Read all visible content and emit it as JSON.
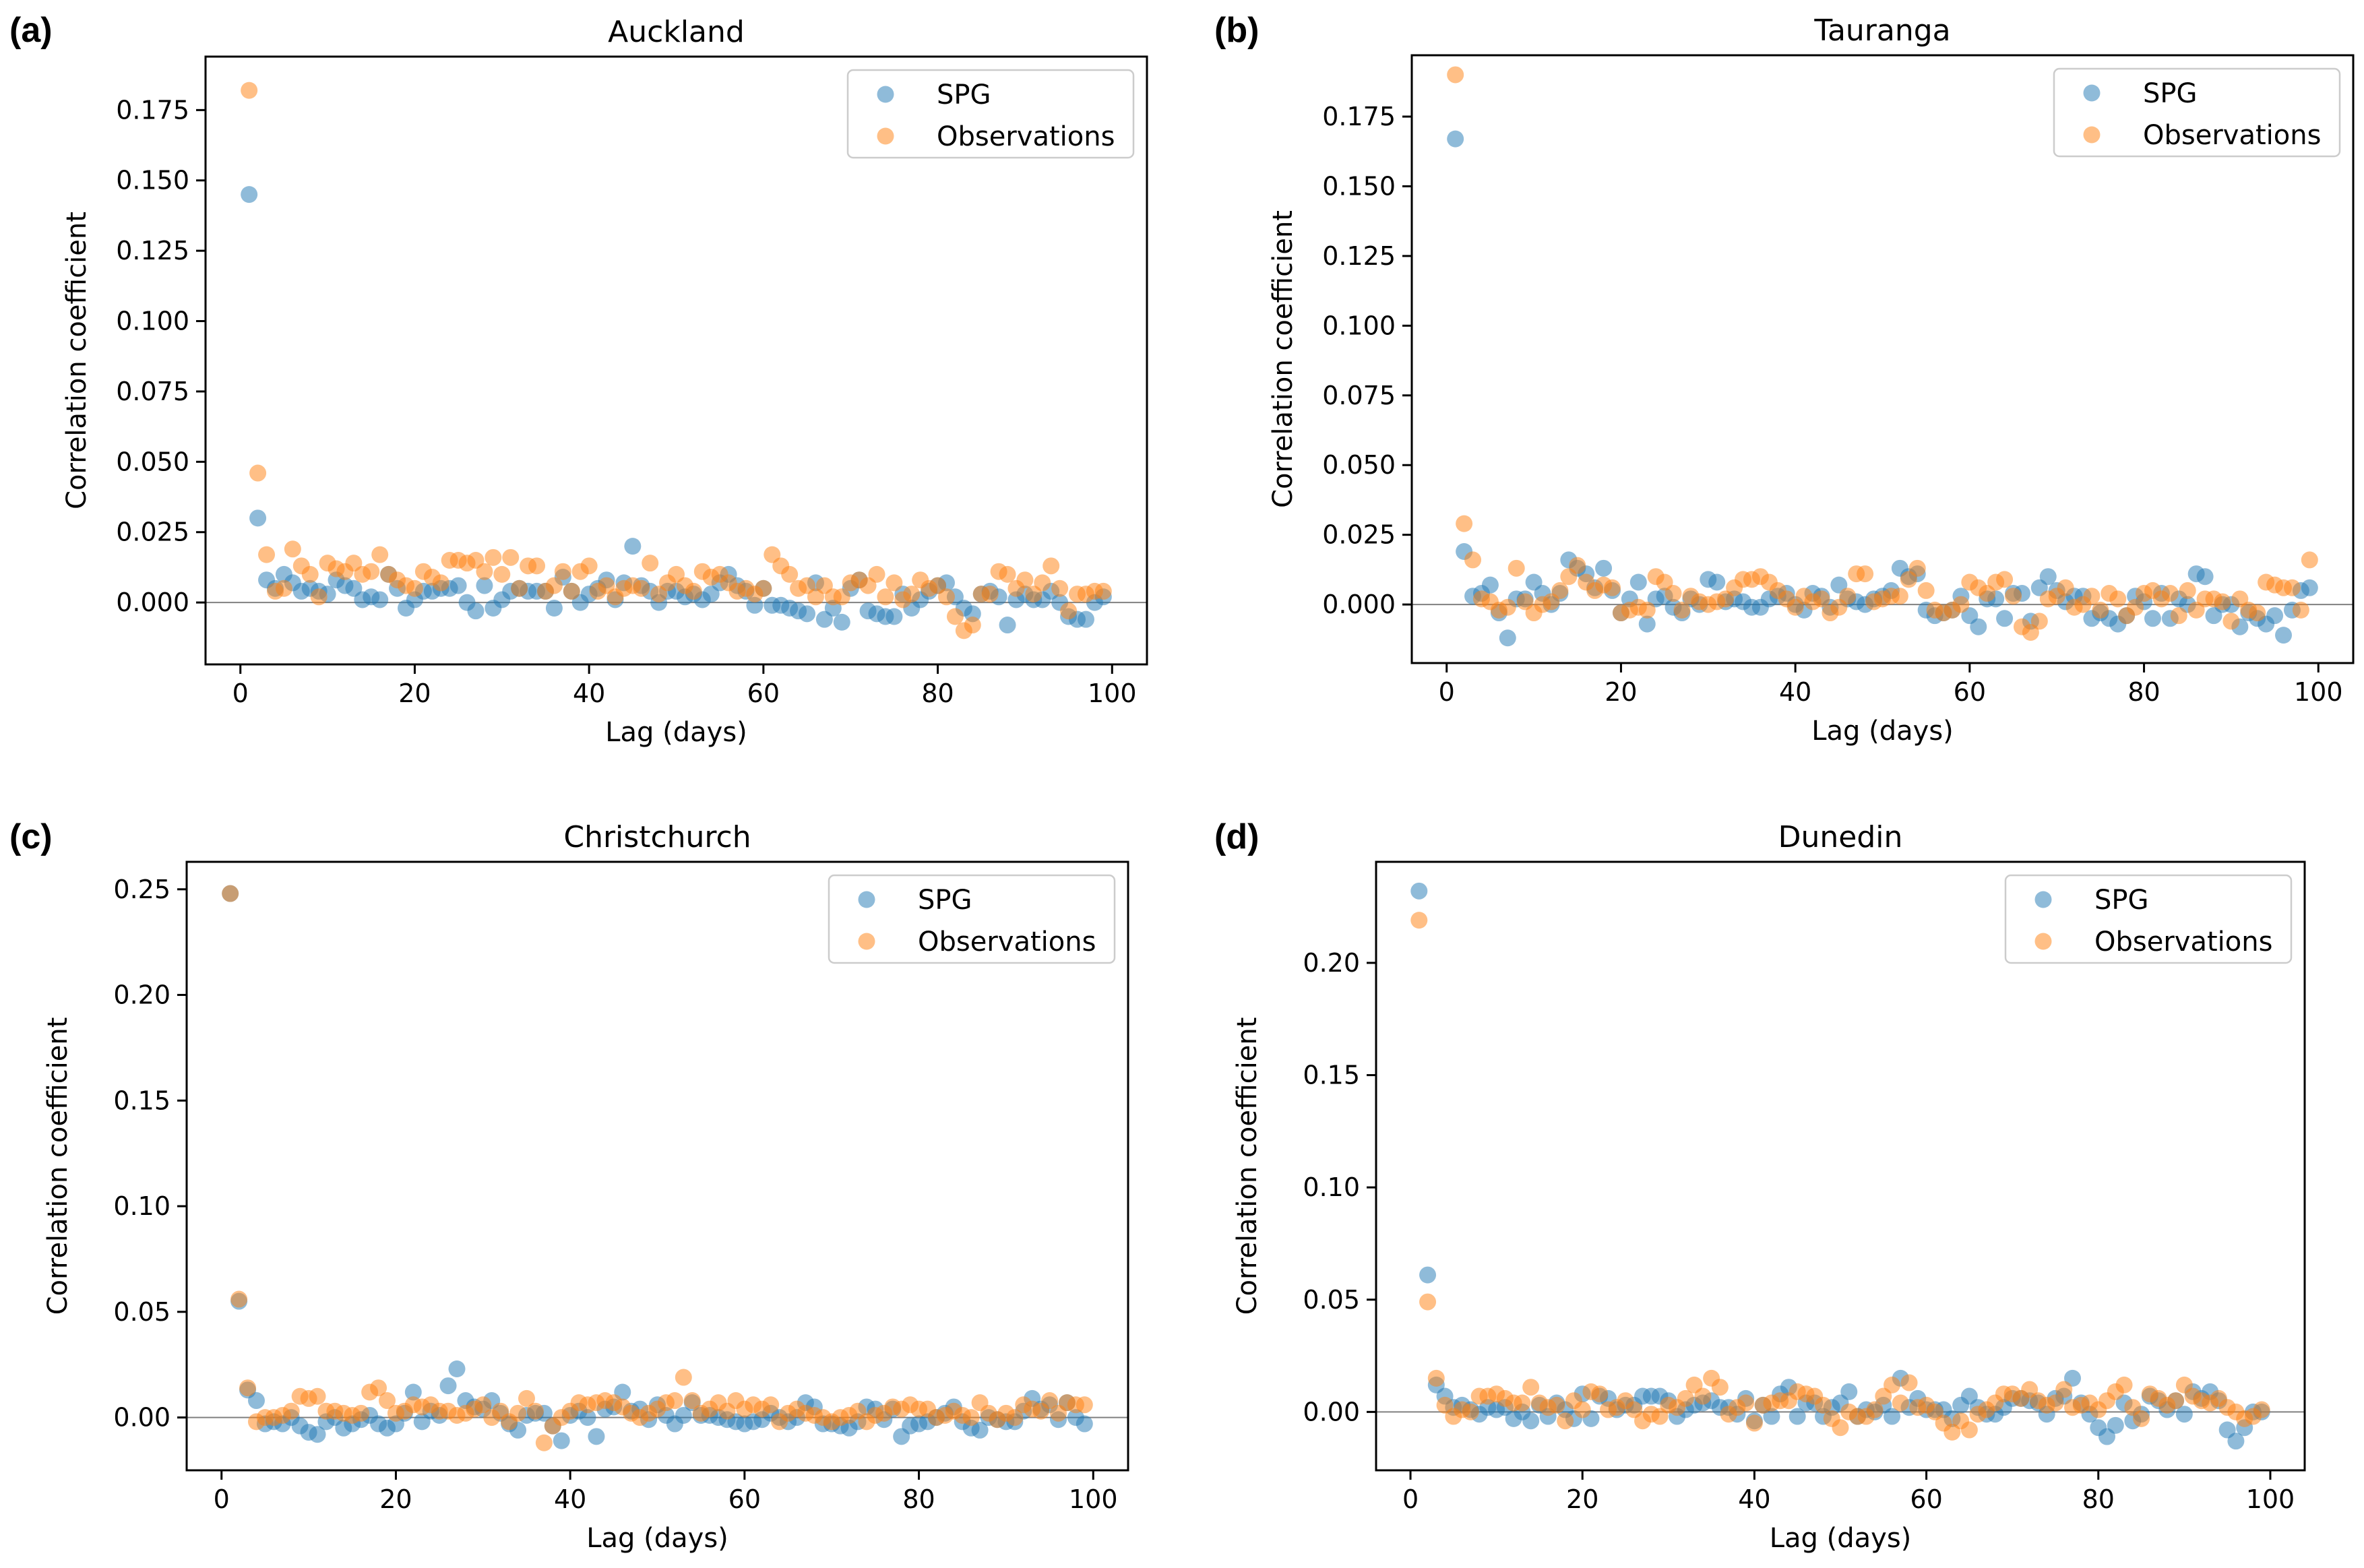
{
  "colors": {
    "spg": "#1f77b4",
    "observations": "#ff7f0e",
    "zero_line": "#808080"
  },
  "chart_data": [
    {
      "type": "scatter",
      "panel_label": "(a)",
      "title": "Auckland",
      "xlabel": "Lag (days)",
      "ylabel": "Correlation coefficient",
      "xlim": [
        -4,
        104
      ],
      "ylim": [
        -0.022,
        0.194
      ],
      "xticks": [
        0,
        20,
        40,
        60,
        80,
        100
      ],
      "yticks": [
        0.0,
        0.025,
        0.05,
        0.075,
        0.1,
        0.125,
        0.15,
        0.175
      ],
      "ytick_labels": [
        "0.000",
        "0.025",
        "0.050",
        "0.075",
        "0.100",
        "0.125",
        "0.150",
        "0.175"
      ],
      "legend": [
        "SPG",
        "Observations"
      ],
      "legend_position": "top-right",
      "series": [
        {
          "name": "SPG",
          "values": [
            0.145,
            0.03,
            0.008,
            0.005,
            0.01,
            0.007,
            0.004,
            0.005,
            0.004,
            0.003,
            0.008,
            0.006,
            0.005,
            0.001,
            0.002,
            0.001,
            0.01,
            0.005,
            -0.002,
            0.001,
            0.004,
            0.004,
            0.005,
            0.005,
            0.006,
            0.0,
            -0.003,
            0.006,
            -0.002,
            0.001,
            0.004,
            0.005,
            0.004,
            0.004,
            0.004,
            -0.002,
            0.009,
            0.004,
            0.0,
            0.003,
            0.005,
            0.008,
            0.001,
            0.007,
            0.02,
            0.006,
            0.004,
            0.0,
            0.004,
            0.004,
            0.002,
            0.003,
            0.001,
            0.003,
            0.007,
            0.01,
            0.006,
            0.004,
            -0.001,
            0.005,
            -0.001,
            -0.001,
            -0.002,
            -0.003,
            -0.004,
            0.007,
            -0.006,
            -0.002,
            -0.007,
            0.005,
            0.008,
            -0.003,
            -0.004,
            -0.005,
            -0.005,
            0.003,
            -0.002,
            0.001,
            0.004,
            0.006,
            0.007,
            0.002,
            -0.002,
            -0.004,
            0.003,
            0.004,
            0.002,
            -0.008,
            0.001,
            0.003,
            0.001,
            0.001,
            0.004,
            0.0,
            -0.005,
            -0.006,
            -0.006,
            0.0,
            0.002
          ]
        },
        {
          "name": "Observations",
          "values": [
            0.182,
            0.046,
            0.017,
            0.004,
            0.005,
            0.019,
            0.013,
            0.01,
            0.002,
            0.014,
            0.012,
            0.011,
            0.014,
            0.01,
            0.011,
            0.017,
            0.01,
            0.008,
            0.006,
            0.005,
            0.011,
            0.009,
            0.007,
            0.015,
            0.015,
            0.014,
            0.015,
            0.011,
            0.016,
            0.01,
            0.016,
            0.005,
            0.013,
            0.013,
            0.004,
            0.006,
            0.011,
            0.004,
            0.011,
            0.013,
            0.004,
            0.006,
            0.002,
            0.005,
            0.006,
            0.005,
            0.014,
            0.003,
            0.007,
            0.01,
            0.006,
            0.004,
            0.011,
            0.009,
            0.01,
            0.007,
            0.004,
            0.005,
            0.003,
            0.005,
            0.017,
            0.013,
            0.01,
            0.005,
            0.006,
            0.002,
            0.006,
            0.002,
            0.002,
            0.007,
            0.008,
            0.006,
            0.01,
            0.002,
            0.007,
            0.001,
            0.003,
            0.008,
            0.005,
            0.006,
            0.002,
            -0.005,
            -0.01,
            -0.008,
            0.003,
            0.003,
            0.011,
            0.01,
            0.005,
            0.008,
            0.003,
            0.007,
            0.013,
            0.005,
            -0.003,
            0.003,
            0.003,
            0.004,
            0.004
          ]
        }
      ]
    },
    {
      "type": "scatter",
      "panel_label": "(b)",
      "title": "Tauranga",
      "xlabel": "Lag (days)",
      "ylabel": "Correlation coefficient",
      "xlim": [
        -4,
        104
      ],
      "ylim": [
        -0.021,
        0.197
      ],
      "xticks": [
        0,
        20,
        40,
        60,
        80,
        100
      ],
      "yticks": [
        0.0,
        0.025,
        0.05,
        0.075,
        0.1,
        0.125,
        0.15,
        0.175
      ],
      "ytick_labels": [
        "0.000",
        "0.025",
        "0.050",
        "0.075",
        "0.100",
        "0.125",
        "0.150",
        "0.175"
      ],
      "legend": [
        "SPG",
        "Observations"
      ],
      "legend_position": "top-right",
      "series": [
        {
          "name": "SPG",
          "values": [
            0.167,
            0.019,
            0.003,
            0.004,
            0.007,
            -0.003,
            -0.012,
            0.002,
            0.002,
            0.008,
            0.004,
            0.0,
            0.004,
            0.016,
            0.013,
            0.011,
            0.006,
            0.013,
            0.005,
            -0.003,
            0.002,
            0.008,
            -0.007,
            0.002,
            0.003,
            -0.001,
            -0.003,
            0.002,
            0.0,
            0.009,
            0.008,
            0.001,
            0.002,
            0.001,
            -0.001,
            -0.001,
            0.002,
            0.003,
            0.004,
            0.0,
            -0.002,
            0.004,
            0.003,
            -0.001,
            0.007,
            0.002,
            0.001,
            0.0,
            0.002,
            0.003,
            0.005,
            0.013,
            0.01,
            0.011,
            -0.002,
            -0.004,
            -0.003,
            -0.002,
            0.003,
            -0.004,
            -0.008,
            0.002,
            0.002,
            -0.005,
            0.004,
            0.004,
            -0.006,
            0.006,
            0.01,
            0.005,
            0.001,
            0.003,
            0.003,
            -0.005,
            -0.003,
            -0.005,
            -0.007,
            -0.004,
            0.003,
            0.001,
            -0.005,
            0.004,
            -0.005,
            0.002,
            0.0,
            0.011,
            0.01,
            -0.004,
            0.0,
            0.0,
            -0.008,
            -0.003,
            -0.005,
            -0.007,
            -0.004,
            -0.011,
            -0.002,
            0.005,
            0.006
          ]
        },
        {
          "name": "Observations",
          "values": [
            0.19,
            0.029,
            0.016,
            0.002,
            0.001,
            -0.002,
            -0.001,
            0.013,
            0.001,
            -0.003,
            0.0,
            0.001,
            0.005,
            0.01,
            0.014,
            0.008,
            0.005,
            0.007,
            0.006,
            -0.003,
            -0.002,
            -0.001,
            -0.002,
            0.01,
            0.008,
            0.004,
            -0.002,
            0.003,
            0.001,
            0.0,
            0.001,
            0.002,
            0.006,
            0.009,
            0.009,
            0.01,
            0.008,
            0.005,
            0.002,
            -0.001,
            0.003,
            0.001,
            0.002,
            -0.003,
            -0.001,
            0.003,
            0.011,
            0.011,
            0.001,
            0.002,
            0.003,
            0.003,
            0.009,
            0.013,
            0.005,
            -0.002,
            -0.003,
            -0.002,
            0.0,
            0.008,
            0.006,
            0.004,
            0.008,
            0.009,
            0.003,
            -0.008,
            -0.01,
            -0.006,
            0.002,
            0.003,
            0.006,
            -0.001,
            0.0,
            0.003,
            -0.002,
            0.004,
            0.002,
            -0.004,
            -0.001,
            0.004,
            0.005,
            0.002,
            0.004,
            -0.004,
            0.005,
            -0.002,
            0.002,
            0.002,
            0.001,
            -0.006,
            0.002,
            -0.002,
            -0.003,
            0.008,
            0.007,
            0.006,
            0.006,
            -0.002,
            0.016
          ]
        }
      ]
    },
    {
      "type": "scatter",
      "panel_label": "(c)",
      "title": "Christchurch",
      "xlabel": "Lag (days)",
      "ylabel": "Correlation coefficient",
      "xlim": [
        -4,
        104
      ],
      "ylim": [
        -0.025,
        0.263
      ],
      "xticks": [
        0,
        20,
        40,
        60,
        80,
        100
      ],
      "yticks": [
        0.0,
        0.05,
        0.1,
        0.15,
        0.2,
        0.25
      ],
      "ytick_labels": [
        "0.00",
        "0.05",
        "0.10",
        "0.15",
        "0.20",
        "0.25"
      ],
      "legend": [
        "SPG",
        "Observations"
      ],
      "legend_position": "top-right",
      "series": [
        {
          "name": "SPG",
          "values": [
            0.248,
            0.055,
            0.013,
            0.008,
            -0.003,
            -0.002,
            -0.003,
            0.0,
            -0.004,
            -0.007,
            -0.008,
            -0.002,
            0.0,
            -0.005,
            -0.003,
            -0.001,
            0.001,
            -0.003,
            -0.005,
            -0.003,
            0.002,
            0.012,
            -0.002,
            0.003,
            0.001,
            0.015,
            0.023,
            0.008,
            0.005,
            0.004,
            0.008,
            0.002,
            -0.003,
            -0.006,
            0.001,
            0.002,
            0.002,
            -0.004,
            -0.011,
            0.001,
            0.003,
            0.0,
            -0.009,
            0.004,
            0.005,
            0.012,
            0.003,
            0.004,
            -0.001,
            0.006,
            0.001,
            -0.003,
            0.001,
            0.007,
            0.001,
            0.001,
            0.0,
            -0.001,
            -0.002,
            -0.003,
            -0.002,
            -0.001,
            0.002,
            0.0,
            -0.002,
            0.0,
            0.007,
            0.005,
            -0.003,
            -0.003,
            -0.004,
            -0.005,
            -0.002,
            0.005,
            0.004,
            -0.001,
            0.004,
            -0.009,
            -0.004,
            -0.003,
            -0.002,
            0.0,
            0.002,
            0.005,
            -0.002,
            -0.005,
            -0.006,
            0.0,
            -0.001,
            -0.002,
            -0.002,
            0.003,
            0.009,
            0.004,
            0.006,
            -0.001,
            0.007,
            0.0,
            -0.003
          ]
        },
        {
          "name": "Observations",
          "values": [
            0.248,
            0.056,
            0.014,
            -0.002,
            0.0,
            0.0,
            0.001,
            0.003,
            0.01,
            0.009,
            0.01,
            0.003,
            0.003,
            0.002,
            0.001,
            0.002,
            0.012,
            0.014,
            0.008,
            0.002,
            0.003,
            0.006,
            0.005,
            0.006,
            0.003,
            0.003,
            0.001,
            0.002,
            0.004,
            0.006,
            0.0,
            0.003,
            -0.002,
            0.002,
            0.009,
            0.003,
            -0.012,
            -0.004,
            0.0,
            0.003,
            0.007,
            0.006,
            0.007,
            0.008,
            0.007,
            0.005,
            0.002,
            0.0,
            0.002,
            0.004,
            0.007,
            0.008,
            0.019,
            0.008,
            0.002,
            0.004,
            0.007,
            0.003,
            0.008,
            0.004,
            0.006,
            0.004,
            0.006,
            -0.002,
            0.002,
            0.004,
            0.002,
            0.001,
            0.0,
            -0.002,
            0.0,
            0.001,
            0.003,
            -0.002,
            0.001,
            0.002,
            0.005,
            0.004,
            0.006,
            0.004,
            0.004,
            0.0,
            0.001,
            0.003,
            0.001,
            0.0,
            0.007,
            0.002,
            -0.001,
            0.002,
            0.0,
            0.006,
            0.004,
            0.003,
            0.008,
            0.002,
            0.007,
            0.006,
            0.006
          ]
        }
      ]
    },
    {
      "type": "scatter",
      "panel_label": "(d)",
      "title": "Dunedin",
      "xlabel": "Lag (days)",
      "ylabel": "Correlation coefficient",
      "xlim": [
        -4,
        104
      ],
      "ylim": [
        -0.026,
        0.245
      ],
      "xticks": [
        0,
        20,
        40,
        60,
        80,
        100
      ],
      "yticks": [
        0.0,
        0.05,
        0.1,
        0.15,
        0.2
      ],
      "ytick_labels": [
        "0.00",
        "0.05",
        "0.10",
        "0.15",
        "0.20"
      ],
      "legend": [
        "SPG",
        "Observations"
      ],
      "legend_position": "top-right",
      "series": [
        {
          "name": "SPG",
          "values": [
            0.232,
            0.061,
            0.012,
            0.007,
            0.002,
            0.003,
            0.001,
            -0.001,
            0.002,
            0.001,
            0.002,
            -0.003,
            0.0,
            -0.004,
            0.003,
            -0.002,
            0.004,
            0.001,
            -0.003,
            0.008,
            -0.003,
            0.007,
            0.006,
            0.001,
            0.003,
            0.003,
            0.007,
            0.007,
            0.007,
            0.005,
            -0.002,
            0.001,
            0.003,
            0.004,
            0.005,
            0.002,
            0.002,
            -0.001,
            0.006,
            -0.004,
            0.003,
            -0.002,
            0.008,
            0.011,
            -0.002,
            0.004,
            0.004,
            -0.002,
            0.002,
            0.004,
            0.009,
            -0.002,
            0.001,
            0.0,
            0.003,
            -0.002,
            0.015,
            0.002,
            0.006,
            0.001,
            0.001,
            0.001,
            -0.003,
            0.003,
            0.007,
            0.002,
            -0.001,
            -0.001,
            0.002,
            0.006,
            0.006,
            0.005,
            0.004,
            -0.001,
            0.006,
            0.007,
            0.015,
            0.004,
            -0.001,
            -0.007,
            -0.011,
            -0.006,
            0.004,
            -0.004,
            -0.001,
            0.007,
            0.005,
            0.001,
            0.005,
            -0.001,
            0.009,
            0.006,
            0.009,
            0.005,
            -0.008,
            -0.013,
            -0.007,
            0.0,
            0.0
          ]
        },
        {
          "name": "Observations",
          "values": [
            0.219,
            0.049,
            0.015,
            0.003,
            -0.002,
            0.001,
            0.0,
            0.007,
            0.007,
            0.008,
            0.006,
            0.004,
            0.004,
            0.011,
            0.004,
            0.002,
            0.003,
            -0.004,
            0.005,
            0.001,
            0.009,
            0.008,
            0.001,
            0.002,
            0.005,
            0.001,
            -0.004,
            -0.001,
            -0.002,
            0.003,
            0.002,
            0.006,
            0.012,
            0.007,
            0.015,
            0.011,
            -0.001,
            0.002,
            0.004,
            -0.005,
            0.003,
            0.004,
            0.005,
            0.005,
            0.009,
            0.008,
            0.007,
            0.003,
            -0.003,
            -0.007,
            0.0,
            -0.002,
            -0.002,
            0.001,
            0.007,
            0.012,
            0.004,
            0.013,
            0.002,
            0.003,
            0.0,
            -0.005,
            -0.009,
            -0.004,
            -0.008,
            -0.001,
            0.001,
            0.004,
            0.008,
            0.008,
            0.006,
            0.01,
            0.005,
            0.003,
            0.004,
            0.01,
            0.002,
            0.003,
            0.004,
            0.001,
            0.005,
            0.009,
            0.012,
            0.002,
            -0.003,
            0.008,
            0.006,
            0.003,
            0.005,
            0.012,
            0.007,
            0.005,
            0.004,
            0.006,
            0.002,
            0.0,
            -0.003,
            -0.002,
            0.001
          ]
        }
      ]
    }
  ]
}
